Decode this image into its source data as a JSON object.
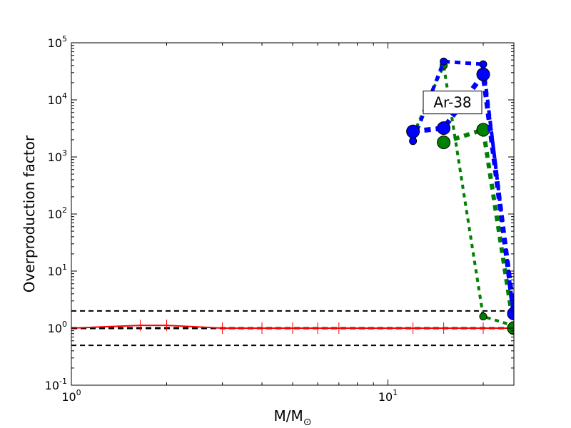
{
  "chart_data": {
    "type": "line",
    "xlabel": "M/M",
    "xlabel_sub": "⊙",
    "ylabel": "Overproduction factor",
    "x_scale": "log",
    "y_scale": "log",
    "xlim": [
      1,
      25
    ],
    "ylim": [
      0.1,
      100000
    ],
    "x_ticks": [
      {
        "value": 1,
        "base": "10",
        "exp": "0"
      },
      {
        "value": 10,
        "base": "10",
        "exp": "1"
      }
    ],
    "y_ticks": [
      {
        "value": 0.1,
        "base": "10",
        "exp": "-1"
      },
      {
        "value": 1,
        "base": "10",
        "exp": "0"
      },
      {
        "value": 10,
        "base": "10",
        "exp": "1"
      },
      {
        "value": 100,
        "base": "10",
        "exp": "2"
      },
      {
        "value": 1000,
        "base": "10",
        "exp": "3"
      },
      {
        "value": 10000,
        "base": "10",
        "exp": "4"
      },
      {
        "value": 100000,
        "base": "10",
        "exp": "5"
      }
    ],
    "reference_lines": [
      {
        "y": 2,
        "color": "#000000"
      },
      {
        "y": 1,
        "color": "#000000"
      },
      {
        "y": 0.5,
        "color": "#000000"
      }
    ],
    "annotation": {
      "text": "Ar-38",
      "x": 20,
      "y": 9000
    },
    "series": [
      {
        "color": "#ff0000",
        "x": [
          1,
          1.65,
          2,
          3,
          4,
          5,
          6,
          7,
          12,
          15,
          20,
          25
        ],
        "y": [
          1.0,
          1.12,
          1.12,
          1.0,
          1.0,
          1.0,
          1.0,
          1.0,
          1.0,
          1.0,
          1.0,
          1.0
        ]
      },
      {
        "color": "#0000ff",
        "x": [
          12,
          15,
          20,
          25
        ],
        "y": [
          1900,
          47000,
          42000,
          1.6
        ]
      },
      {
        "color": "#0000ff",
        "x": [
          12,
          15,
          20,
          25
        ],
        "y": [
          2800,
          3200,
          28000,
          1.8
        ]
      },
      {
        "color": "#008000",
        "x": [
          12,
          15,
          20,
          25
        ],
        "y": [
          2400,
          40000,
          1.6,
          1.1
        ]
      },
      {
        "color": "#008000",
        "x": [
          15,
          20,
          25
        ],
        "y": [
          1800,
          3000,
          1.0
        ]
      }
    ]
  }
}
